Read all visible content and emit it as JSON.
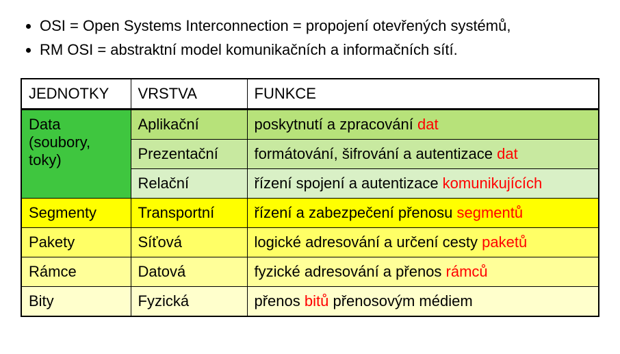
{
  "bullets": [
    "OSI =  Open Systems Interconnection = propojení otevřených systémů,",
    "RM OSI = abstraktní model komunikačních a informačních sítí."
  ],
  "table": {
    "headers": [
      "JEDNOTKY",
      "VRSTVA",
      "FUNKCE"
    ],
    "units": {
      "data_line1": "Data",
      "data_line2": "(soubory, toky)",
      "segments": "Segmenty",
      "packets": "Pakety",
      "frames": "Rámce",
      "bits": "Bity"
    },
    "layers": {
      "app": "Aplikační",
      "pres": "Prezentační",
      "sess": "Relační",
      "trans": "Transportní",
      "net": "Síťová",
      "link": "Datová",
      "phys": "Fyzická"
    },
    "funcs": {
      "app_pre": "poskytnutí a zpracování ",
      "app_hl": "dat",
      "pres_pre": "formátování, šifrování a autentizace ",
      "pres_hl": "dat",
      "sess_pre": "řízení spojení a autentizace ",
      "sess_hl": "komunikujících",
      "trans_pre": "řízení a zabezpečení přenosu ",
      "trans_hl": "segmentů",
      "net_pre": "logické adresování a určení cesty ",
      "net_hl": "paketů",
      "link_pre": "fyzické adresování a přenos ",
      "link_hl": "rámců",
      "phys_pre": "přenos ",
      "phys_hl": "bitů",
      "phys_post": " přenosovým médiem"
    },
    "colors": {
      "header_bg": "#ffffff",
      "data_unit_bg": "#3fc63f",
      "app_bg": "#b7e27a",
      "pres_bg": "#c8e9a0",
      "sess_bg": "#d9f0c6",
      "trans_bg": "#ffff00",
      "net_bg": "#ffff66",
      "link_bg": "#ffff99",
      "phys_bg": "#ffffcc",
      "highlight": "#ff0000",
      "border": "#000000",
      "text": "#000000"
    },
    "font": {
      "size_pt": 17,
      "family": "Arial"
    }
  }
}
